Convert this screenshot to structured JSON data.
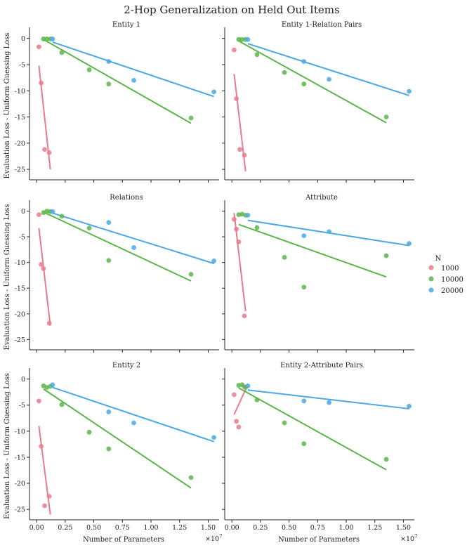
{
  "title": "2-Hop Generalization on Held Out Items",
  "colors": {
    "1000": "#ea7a8c",
    "10000": "#5ab54a",
    "20000": "#4aa8e4",
    "axis": "#222222"
  },
  "legend": {
    "title": "N",
    "items": [
      "1000",
      "10000",
      "20000"
    ]
  },
  "chart_data": [
    {
      "type": "scatter",
      "title": "Entity 1",
      "xlabel": "",
      "ylabel": "Evaluation Loss - Uniform Guessing Loss",
      "xlim": [
        -0.05,
        1.62
      ],
      "ylim": [
        -27,
        1.3
      ],
      "xticks": [],
      "yticks": [
        "0",
        "-5",
        "-10",
        "-15",
        "-20",
        "-25"
      ],
      "series": [
        {
          "name": "1000",
          "points": [
            [
              0.02,
              -1.6
            ],
            [
              0.04,
              -8.5
            ],
            [
              0.07,
              -21.2
            ],
            [
              0.11,
              -21.8
            ]
          ],
          "fit": [
            [
              0.02,
              -5.2
            ],
            [
              0.12,
              -25.0
            ]
          ]
        },
        {
          "name": "10000",
          "points": [
            [
              0.06,
              -0.1
            ],
            [
              0.09,
              -0.1
            ],
            [
              0.12,
              -0.1
            ],
            [
              0.22,
              -2.7
            ],
            [
              0.46,
              -6.0
            ],
            [
              0.63,
              -8.7
            ],
            [
              1.35,
              -15.2
            ]
          ],
          "fit": [
            [
              0.06,
              -0.2
            ],
            [
              1.35,
              -16.2
            ]
          ]
        },
        {
          "name": "20000",
          "points": [
            [
              0.14,
              -0.1
            ],
            [
              0.63,
              -4.4
            ],
            [
              0.85,
              -8.0
            ],
            [
              1.55,
              -10.2
            ]
          ],
          "fit": [
            [
              0.14,
              -0.7
            ],
            [
              1.55,
              -11.1
            ]
          ]
        }
      ]
    },
    {
      "type": "scatter",
      "title": "Entity 1-Relation Pairs",
      "xlabel": "",
      "ylabel": "",
      "xlim": [
        -0.05,
        1.62
      ],
      "ylim": [
        -27,
        1.3
      ],
      "xticks": [],
      "yticks": [],
      "series": [
        {
          "name": "1000",
          "points": [
            [
              0.02,
              -2.2
            ],
            [
              0.04,
              -11.5
            ],
            [
              0.07,
              -21.2
            ],
            [
              0.11,
              -22.3
            ]
          ],
          "fit": [
            [
              0.02,
              -6.8
            ],
            [
              0.12,
              -25.4
            ]
          ]
        },
        {
          "name": "10000",
          "points": [
            [
              0.06,
              -0.2
            ],
            [
              0.09,
              -0.2
            ],
            [
              0.12,
              -0.2
            ],
            [
              0.22,
              -3.1
            ],
            [
              0.46,
              -6.5
            ],
            [
              0.63,
              -8.7
            ],
            [
              1.35,
              -15.0
            ]
          ],
          "fit": [
            [
              0.06,
              -0.5
            ],
            [
              1.35,
              -16.1
            ]
          ]
        },
        {
          "name": "20000",
          "points": [
            [
              0.14,
              -0.2
            ],
            [
              0.63,
              -4.4
            ],
            [
              0.85,
              -7.8
            ],
            [
              1.55,
              -10.1
            ]
          ],
          "fit": [
            [
              0.14,
              -1.0
            ],
            [
              1.55,
              -10.9
            ]
          ]
        }
      ]
    },
    {
      "type": "scatter",
      "title": "Relations",
      "xlabel": "",
      "ylabel": "Evaluation Loss - Uniform Guessing Loss",
      "xlim": [
        -0.05,
        1.62
      ],
      "ylim": [
        -27,
        1.3
      ],
      "xticks": [],
      "yticks": [
        "0",
        "-5",
        "-10",
        "-15",
        "-20",
        "-25"
      ],
      "series": [
        {
          "name": "1000",
          "points": [
            [
              0.02,
              -0.7
            ],
            [
              0.04,
              -10.4
            ],
            [
              0.06,
              -11.2
            ],
            [
              0.11,
              -21.8
            ]
          ],
          "fit": [
            [
              0.02,
              -3.3
            ],
            [
              0.12,
              -22.3
            ]
          ]
        },
        {
          "name": "10000",
          "points": [
            [
              0.06,
              -0.3
            ],
            [
              0.09,
              0.0
            ],
            [
              0.12,
              -0.1
            ],
            [
              0.22,
              -1.0
            ],
            [
              0.46,
              -3.3
            ],
            [
              0.63,
              -9.6
            ],
            [
              1.35,
              -12.3
            ]
          ],
          "fit": [
            [
              0.06,
              -0.2
            ],
            [
              1.35,
              -13.6
            ]
          ]
        },
        {
          "name": "20000",
          "points": [
            [
              0.14,
              -0.1
            ],
            [
              0.63,
              -2.2
            ],
            [
              0.85,
              -7.1
            ],
            [
              1.55,
              -9.7
            ]
          ],
          "fit": [
            [
              0.14,
              -0.4
            ],
            [
              1.55,
              -10.2
            ]
          ]
        }
      ]
    },
    {
      "type": "scatter",
      "title": "Attribute",
      "xlabel": "",
      "ylabel": "",
      "xlim": [
        -0.05,
        1.62
      ],
      "ylim": [
        -27,
        1.3
      ],
      "xticks": [],
      "yticks": [],
      "series": [
        {
          "name": "1000",
          "points": [
            [
              0.02,
              -1.6
            ],
            [
              0.04,
              -3.5
            ],
            [
              0.06,
              -6.0
            ],
            [
              0.11,
              -20.4
            ]
          ],
          "fit": [
            [
              0.02,
              -0.4
            ],
            [
              0.12,
              -19.5
            ]
          ]
        },
        {
          "name": "10000",
          "points": [
            [
              0.06,
              -0.7
            ],
            [
              0.09,
              -0.6
            ],
            [
              0.12,
              -0.8
            ],
            [
              0.22,
              -3.2
            ],
            [
              0.46,
              -9.0
            ],
            [
              0.63,
              -14.8
            ],
            [
              1.35,
              -8.7
            ]
          ],
          "fit": [
            [
              0.06,
              -2.6
            ],
            [
              1.35,
              -12.8
            ]
          ]
        },
        {
          "name": "20000",
          "points": [
            [
              0.14,
              -0.8
            ],
            [
              0.63,
              -4.8
            ],
            [
              0.85,
              -4.0
            ],
            [
              1.55,
              -6.3
            ]
          ],
          "fit": [
            [
              0.14,
              -1.8
            ],
            [
              1.55,
              -6.7
            ]
          ]
        }
      ]
    },
    {
      "type": "scatter",
      "title": "Entity 2",
      "xlabel": "Number of Parameters",
      "ylabel": "Evaluation Loss - Uniform Guessing Loss",
      "xlim": [
        -0.05,
        1.62
      ],
      "ylim": [
        -27,
        1.3
      ],
      "xticks": [
        "0.00",
        "0.25",
        "0.50",
        "0.75",
        "1.00",
        "1.25",
        "1.50"
      ],
      "yticks": [
        "0",
        "-5",
        "-10",
        "-15",
        "-20",
        "-25"
      ],
      "x_scale_label": "×10^7",
      "series": [
        {
          "name": "1000",
          "points": [
            [
              0.02,
              -4.2
            ],
            [
              0.04,
              -12.9
            ],
            [
              0.07,
              -24.3
            ],
            [
              0.11,
              -22.5
            ]
          ],
          "fit": [
            [
              0.02,
              -9.0
            ],
            [
              0.12,
              -26.0
            ]
          ]
        },
        {
          "name": "10000",
          "points": [
            [
              0.06,
              -1.3
            ],
            [
              0.09,
              -1.6
            ],
            [
              0.12,
              -1.4
            ],
            [
              0.22,
              -4.9
            ],
            [
              0.46,
              -10.2
            ],
            [
              0.63,
              -13.4
            ],
            [
              1.35,
              -18.9
            ]
          ],
          "fit": [
            [
              0.06,
              -1.9
            ],
            [
              1.35,
              -20.9
            ]
          ]
        },
        {
          "name": "20000",
          "points": [
            [
              0.14,
              -1.1
            ],
            [
              0.63,
              -6.3
            ],
            [
              0.85,
              -8.4
            ],
            [
              1.55,
              -11.2
            ]
          ],
          "fit": [
            [
              0.14,
              -1.6
            ],
            [
              1.55,
              -12.0
            ]
          ]
        }
      ]
    },
    {
      "type": "scatter",
      "title": "Entity 2-Attribute Pairs",
      "xlabel": "Number of Parameters",
      "ylabel": "",
      "xlim": [
        -0.05,
        1.62
      ],
      "ylim": [
        -27,
        1.3
      ],
      "xticks": [
        "0.00",
        "0.25",
        "0.50",
        "0.75",
        "1.00",
        "1.25",
        "1.50"
      ],
      "yticks": [],
      "x_scale_label": "×10^7",
      "series": [
        {
          "name": "1000",
          "points": [
            [
              0.02,
              -3.0
            ],
            [
              0.04,
              -8.1
            ],
            [
              0.06,
              -9.2
            ],
            [
              0.11,
              -1.5
            ]
          ],
          "fit": [
            [
              0.02,
              -6.8
            ],
            [
              0.12,
              -2.0
            ]
          ]
        },
        {
          "name": "10000",
          "points": [
            [
              0.06,
              -1.2
            ],
            [
              0.09,
              -1.1
            ],
            [
              0.12,
              -1.6
            ],
            [
              0.22,
              -4.0
            ],
            [
              0.46,
              -8.4
            ],
            [
              0.63,
              -12.4
            ],
            [
              1.35,
              -15.4
            ]
          ],
          "fit": [
            [
              0.06,
              -1.7
            ],
            [
              1.35,
              -17.4
            ]
          ]
        },
        {
          "name": "20000",
          "points": [
            [
              0.14,
              -1.3
            ],
            [
              0.63,
              -4.2
            ],
            [
              0.85,
              -4.5
            ],
            [
              1.55,
              -5.2
            ]
          ],
          "fit": [
            [
              0.14,
              -2.1
            ],
            [
              1.55,
              -5.7
            ]
          ]
        }
      ]
    }
  ]
}
